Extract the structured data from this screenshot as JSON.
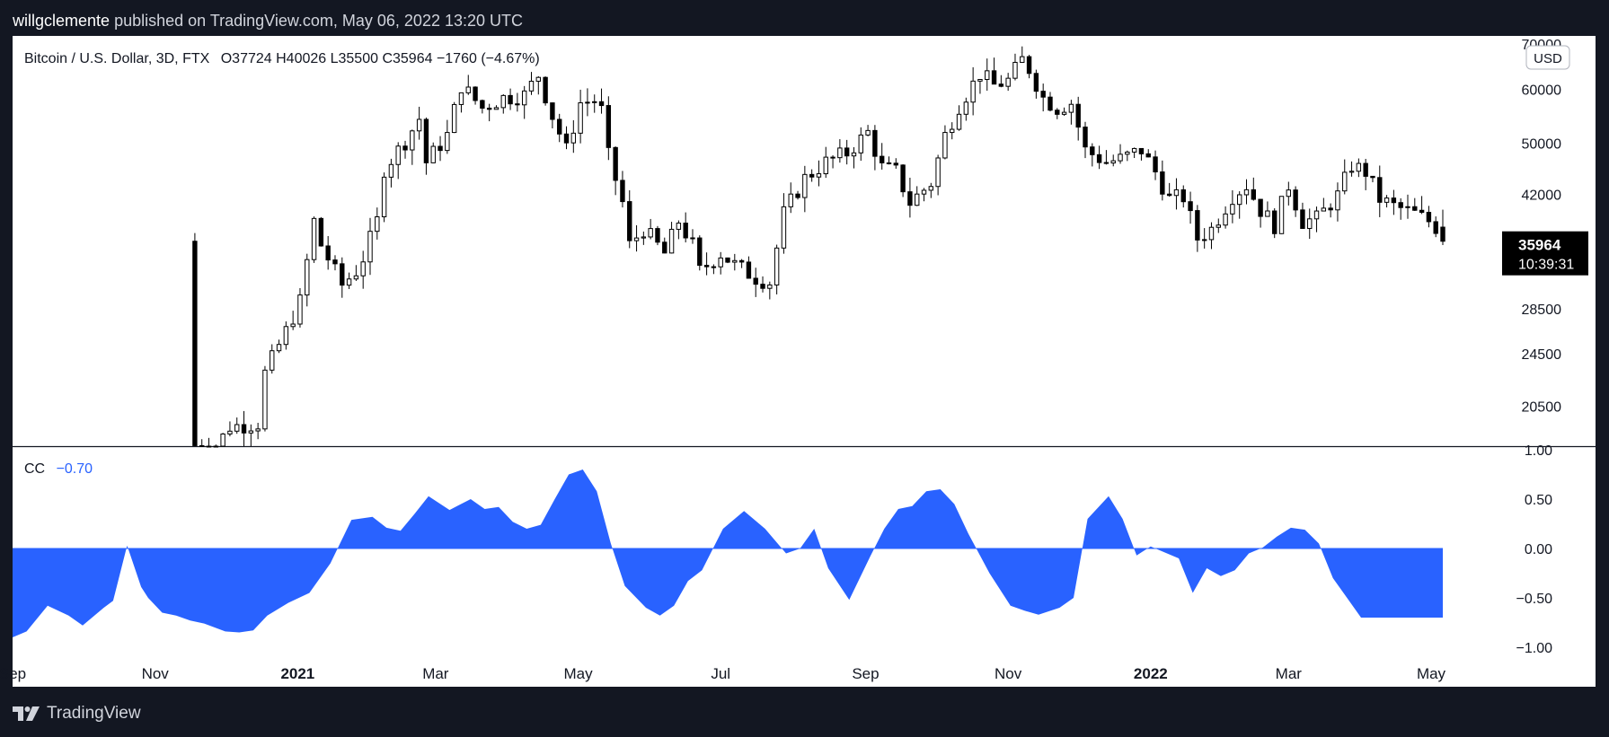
{
  "header": {
    "publisher": "willgclemente",
    "published_text": "published on TradingView.com, May 06, 2022 13:20 UTC"
  },
  "legend": {
    "symbol": "Bitcoin / U.S. Dollar, 3D, FTX",
    "ohlc": "O37724  H40026  L35500  C35964  −1760 (−4.67%)"
  },
  "currency_badge": "USD",
  "last_price": {
    "price": "35964",
    "countdown": "10:39:31"
  },
  "indicator": {
    "name": "CC",
    "value": "−0.70",
    "color": "#2962ff"
  },
  "footer": {
    "brand": "TradingView"
  },
  "colors": {
    "frame": "#131722",
    "pane_bg": "#ffffff",
    "candle": "#000000",
    "cc_fill": "#2962ff",
    "axis_text": "#131722"
  },
  "chart_data": [
    {
      "type": "candlestick",
      "title": "Bitcoin / U.S. Dollar, 3D, FTX",
      "y_scale": "log",
      "ylim": [
        17700,
        70000
      ],
      "y_ticks": [
        20500,
        24500,
        28500,
        42000,
        50000,
        60000,
        70000
      ],
      "y_tick_labels": [
        "20500",
        "24500",
        "28500",
        "42000",
        "50000",
        "60000",
        "70000"
      ],
      "x_range": [
        "2020-09-01",
        "2022-05-10"
      ],
      "x_ticks": [
        {
          "date": "2020-09-01",
          "label": "Sep"
        },
        {
          "date": "2020-11-01",
          "label": "Nov"
        },
        {
          "date": "2021-01-01",
          "label": "2021"
        },
        {
          "date": "2021-03-01",
          "label": "Mar"
        },
        {
          "date": "2021-05-01",
          "label": "May"
        },
        {
          "date": "2021-07-01",
          "label": "Jul"
        },
        {
          "date": "2021-09-01",
          "label": "Sep"
        },
        {
          "date": "2021-11-01",
          "label": "Nov"
        },
        {
          "date": "2022-01-01",
          "label": "2022"
        },
        {
          "date": "2022-03-01",
          "label": "Mar"
        },
        {
          "date": "2022-05-01",
          "label": "May"
        }
      ],
      "visible_start": "2020-11-18",
      "interval_days": 3,
      "close_path": [
        [
          "2020-11-18",
          18000
        ],
        [
          "2020-11-27",
          17900
        ],
        [
          "2020-12-03",
          19200
        ],
        [
          "2020-12-15",
          19400
        ],
        [
          "2020-12-18",
          23000
        ],
        [
          "2020-12-27",
          26500
        ],
        [
          "2021-01-02",
          29300
        ],
        [
          "2021-01-08",
          38500
        ],
        [
          "2021-01-11",
          35500
        ],
        [
          "2021-01-20",
          31000
        ],
        [
          "2021-01-26",
          32500
        ],
        [
          "2021-01-29",
          34000
        ],
        [
          "2021-02-04",
          38500
        ],
        [
          "2021-02-07",
          46000
        ],
        [
          "2021-02-16",
          50500
        ],
        [
          "2021-02-22",
          54500
        ],
        [
          "2021-02-25",
          47000
        ],
        [
          "2021-03-06",
          51500
        ],
        [
          "2021-03-12",
          61000
        ],
        [
          "2021-03-21",
          56500
        ],
        [
          "2021-03-30",
          58500
        ],
        [
          "2021-04-08",
          59000
        ],
        [
          "2021-04-14",
          63200
        ],
        [
          "2021-04-20",
          55000
        ],
        [
          "2021-04-26",
          49000
        ],
        [
          "2021-05-02",
          57500
        ],
        [
          "2021-05-08",
          58000
        ],
        [
          "2021-05-11",
          56000
        ],
        [
          "2021-05-14",
          48000
        ],
        [
          "2021-05-20",
          41000
        ],
        [
          "2021-05-23",
          35500
        ],
        [
          "2021-05-29",
          37500
        ],
        [
          "2021-06-07",
          34500
        ],
        [
          "2021-06-13",
          38500
        ],
        [
          "2021-06-19",
          35500
        ],
        [
          "2021-06-22",
          32500
        ],
        [
          "2021-07-01",
          34500
        ],
        [
          "2021-07-07",
          33200
        ],
        [
          "2021-07-16",
          31800
        ],
        [
          "2021-07-22",
          31300
        ],
        [
          "2021-07-28",
          39500
        ],
        [
          "2021-08-06",
          44500
        ],
        [
          "2021-08-15",
          47000
        ],
        [
          "2021-08-24",
          48500
        ],
        [
          "2021-09-02",
          52000
        ],
        [
          "2021-09-08",
          46200
        ],
        [
          "2021-09-14",
          45500
        ],
        [
          "2021-09-20",
          41000
        ],
        [
          "2021-09-29",
          43800
        ],
        [
          "2021-10-05",
          51500
        ],
        [
          "2021-10-11",
          57000
        ],
        [
          "2021-10-20",
          63500
        ],
        [
          "2021-10-26",
          61000
        ],
        [
          "2021-11-01",
          62000
        ],
        [
          "2021-11-07",
          66500
        ],
        [
          "2021-11-10",
          64500
        ],
        [
          "2021-11-16",
          58500
        ],
        [
          "2021-11-22",
          56500
        ],
        [
          "2021-11-28",
          57500
        ],
        [
          "2021-12-04",
          49000
        ],
        [
          "2021-12-13",
          47000
        ],
        [
          "2021-12-19",
          47500
        ],
        [
          "2021-12-28",
          49000
        ],
        [
          "2022-01-03",
          45500
        ],
        [
          "2022-01-09",
          41500
        ],
        [
          "2022-01-15",
          41800
        ],
        [
          "2022-01-21",
          36300
        ],
        [
          "2022-01-27",
          37500
        ],
        [
          "2022-02-05",
          42000
        ],
        [
          "2022-02-11",
          43500
        ],
        [
          "2022-02-17",
          40000
        ],
        [
          "2022-02-23",
          38000
        ],
        [
          "2022-03-01",
          43500
        ],
        [
          "2022-03-07",
          38500
        ],
        [
          "2022-03-13",
          38800
        ],
        [
          "2022-03-22",
          42000
        ],
        [
          "2022-03-28",
          46500
        ],
        [
          "2022-04-03",
          45500
        ],
        [
          "2022-04-09",
          41500
        ],
        [
          "2022-04-15",
          40500
        ],
        [
          "2022-04-24",
          39500
        ],
        [
          "2022-04-30",
          38500
        ],
        [
          "2022-05-03",
          37724
        ],
        [
          "2022-05-06",
          35964
        ]
      ],
      "last_candle": {
        "date": "2022-05-06",
        "open": 37724,
        "high": 40026,
        "low": 35500,
        "close": 35964
      },
      "last_price_label": "35964"
    },
    {
      "type": "area",
      "title": "CC",
      "ylim": [
        -1.0,
        1.0
      ],
      "y_ticks": [
        -1.0,
        -0.5,
        0.0,
        0.5,
        1.0
      ],
      "y_tick_labels": [
        "−1.00",
        "−0.50",
        "0.00",
        "0.50",
        "1.00"
      ],
      "baseline": 0,
      "current_value": -0.7,
      "x": [
        "2020-09-01",
        "2020-09-07",
        "2020-09-16",
        "2020-09-25",
        "2020-10-01",
        "2020-10-10",
        "2020-10-14",
        "2020-10-20",
        "2020-10-26",
        "2020-10-29",
        "2020-11-04",
        "2020-11-10",
        "2020-11-16",
        "2020-11-22",
        "2020-12-01",
        "2020-12-07",
        "2020-12-13",
        "2020-12-19",
        "2020-12-28",
        "2021-01-06",
        "2021-01-15",
        "2021-01-24",
        "2021-02-02",
        "2021-02-08",
        "2021-02-14",
        "2021-02-20",
        "2021-02-26",
        "2021-03-07",
        "2021-03-16",
        "2021-03-22",
        "2021-03-28",
        "2021-04-03",
        "2021-04-09",
        "2021-04-15",
        "2021-04-21",
        "2021-04-27",
        "2021-05-03",
        "2021-05-09",
        "2021-05-15",
        "2021-05-21",
        "2021-05-30",
        "2021-06-05",
        "2021-06-11",
        "2021-06-17",
        "2021-06-23",
        "2021-07-02",
        "2021-07-11",
        "2021-07-20",
        "2021-07-29",
        "2021-08-04",
        "2021-08-10",
        "2021-08-16",
        "2021-08-25",
        "2021-09-03",
        "2021-09-09",
        "2021-09-15",
        "2021-09-21",
        "2021-09-27",
        "2021-10-03",
        "2021-10-09",
        "2021-10-15",
        "2021-10-24",
        "2021-11-02",
        "2021-11-08",
        "2021-11-14",
        "2021-11-23",
        "2021-11-29",
        "2021-12-05",
        "2021-12-14",
        "2021-12-20",
        "2021-12-26",
        "2022-01-01",
        "2022-01-07",
        "2022-01-13",
        "2022-01-19",
        "2022-01-25",
        "2022-01-31",
        "2022-02-06",
        "2022-02-12",
        "2022-02-18",
        "2022-02-24",
        "2022-03-02",
        "2022-03-08",
        "2022-03-14",
        "2022-03-20",
        "2022-03-26",
        "2022-04-01",
        "2022-04-07",
        "2022-04-13",
        "2022-04-19",
        "2022-04-25",
        "2022-05-01",
        "2022-05-06"
      ],
      "values": [
        -0.9,
        -0.84,
        -0.58,
        -0.68,
        -0.78,
        -0.6,
        -0.53,
        0.03,
        -0.39,
        -0.5,
        -0.65,
        -0.68,
        -0.73,
        -0.76,
        -0.84,
        -0.85,
        -0.83,
        -0.68,
        -0.55,
        -0.45,
        -0.15,
        0.29,
        0.32,
        0.21,
        0.18,
        0.35,
        0.53,
        0.39,
        0.5,
        0.4,
        0.42,
        0.27,
        0.2,
        0.24,
        0.5,
        0.75,
        0.8,
        0.58,
        0.05,
        -0.38,
        -0.6,
        -0.68,
        -0.58,
        -0.33,
        -0.22,
        0.2,
        0.38,
        0.2,
        -0.05,
        0.0,
        0.2,
        -0.2,
        -0.52,
        -0.08,
        0.2,
        0.4,
        0.43,
        0.58,
        0.6,
        0.45,
        0.15,
        -0.25,
        -0.58,
        -0.63,
        -0.67,
        -0.6,
        -0.5,
        0.3,
        0.53,
        0.3,
        -0.07,
        0.02,
        -0.04,
        -0.1,
        -0.45,
        -0.2,
        -0.28,
        -0.22,
        -0.05,
        0.01,
        0.12,
        0.21,
        0.19,
        0.05,
        -0.3,
        -0.5,
        -0.7,
        -0.7,
        -0.7,
        -0.7,
        -0.7,
        -0.7,
        -0.7
      ]
    }
  ]
}
